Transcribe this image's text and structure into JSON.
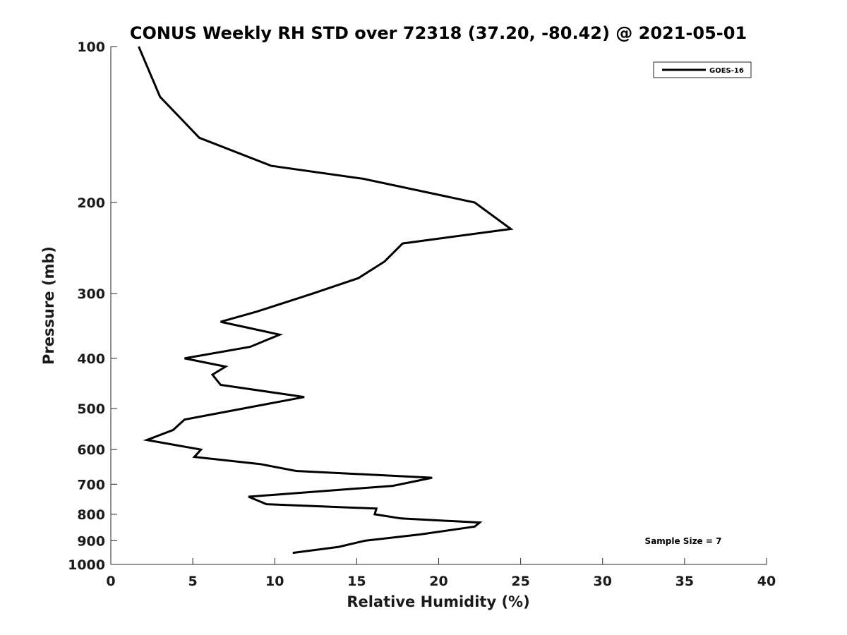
{
  "chart_data": {
    "type": "line",
    "title": "CONUS Weekly RH STD over 72318 (37.20, -80.42) @ 2021-05-01",
    "xlabel": "Relative Humidity (%)",
    "ylabel": "Pressure (mb)",
    "xlim": [
      0,
      40
    ],
    "ylim": [
      1000,
      100
    ],
    "y_scale": "log",
    "y_reversed": true,
    "grid": false,
    "x_ticks": [
      0,
      5,
      10,
      15,
      20,
      25,
      30,
      35,
      40
    ],
    "y_ticks": [
      100,
      200,
      300,
      400,
      500,
      600,
      700,
      800,
      900,
      1000
    ],
    "legend_position": "top-right",
    "series": [
      {
        "name": "GOES-16",
        "color": "#000000",
        "points": [
          {
            "x": 1.7,
            "y": 100
          },
          {
            "x": 3.0,
            "y": 125
          },
          {
            "x": 5.4,
            "y": 150
          },
          {
            "x": 9.8,
            "y": 170
          },
          {
            "x": 15.4,
            "y": 180
          },
          {
            "x": 22.2,
            "y": 200
          },
          {
            "x": 24.4,
            "y": 225
          },
          {
            "x": 17.8,
            "y": 240
          },
          {
            "x": 16.7,
            "y": 260
          },
          {
            "x": 15.1,
            "y": 280
          },
          {
            "x": 12.3,
            "y": 300
          },
          {
            "x": 8.9,
            "y": 325
          },
          {
            "x": 6.7,
            "y": 340
          },
          {
            "x": 10.3,
            "y": 360
          },
          {
            "x": 8.5,
            "y": 380
          },
          {
            "x": 4.5,
            "y": 400
          },
          {
            "x": 7.0,
            "y": 415
          },
          {
            "x": 6.2,
            "y": 430
          },
          {
            "x": 6.7,
            "y": 450
          },
          {
            "x": 11.8,
            "y": 475
          },
          {
            "x": 4.5,
            "y": 525
          },
          {
            "x": 3.8,
            "y": 550
          },
          {
            "x": 2.2,
            "y": 575
          },
          {
            "x": 5.5,
            "y": 600
          },
          {
            "x": 5.1,
            "y": 620
          },
          {
            "x": 9.1,
            "y": 640
          },
          {
            "x": 11.3,
            "y": 660
          },
          {
            "x": 19.6,
            "y": 680
          },
          {
            "x": 17.2,
            "y": 705
          },
          {
            "x": 8.4,
            "y": 740
          },
          {
            "x": 9.5,
            "y": 765
          },
          {
            "x": 16.2,
            "y": 780
          },
          {
            "x": 16.1,
            "y": 800
          },
          {
            "x": 17.7,
            "y": 815
          },
          {
            "x": 22.5,
            "y": 830
          },
          {
            "x": 22.2,
            "y": 845
          },
          {
            "x": 18.9,
            "y": 875
          },
          {
            "x": 15.5,
            "y": 900
          },
          {
            "x": 13.9,
            "y": 925
          },
          {
            "x": 11.1,
            "y": 950
          }
        ]
      }
    ],
    "annotations": [
      "Sample Size = 7"
    ]
  }
}
